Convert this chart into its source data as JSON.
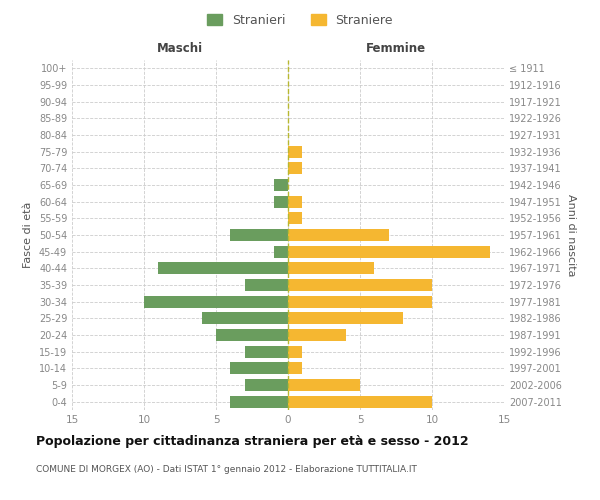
{
  "age_groups": [
    "100+",
    "95-99",
    "90-94",
    "85-89",
    "80-84",
    "75-79",
    "70-74",
    "65-69",
    "60-64",
    "55-59",
    "50-54",
    "45-49",
    "40-44",
    "35-39",
    "30-34",
    "25-29",
    "20-24",
    "15-19",
    "10-14",
    "5-9",
    "0-4"
  ],
  "birth_years": [
    "≤ 1911",
    "1912-1916",
    "1917-1921",
    "1922-1926",
    "1927-1931",
    "1932-1936",
    "1937-1941",
    "1942-1946",
    "1947-1951",
    "1952-1956",
    "1957-1961",
    "1962-1966",
    "1967-1971",
    "1972-1976",
    "1977-1981",
    "1982-1986",
    "1987-1991",
    "1992-1996",
    "1997-2001",
    "2002-2006",
    "2007-2011"
  ],
  "males": [
    0,
    0,
    0,
    0,
    0,
    0,
    0,
    1,
    1,
    0,
    4,
    1,
    9,
    3,
    10,
    6,
    5,
    3,
    4,
    3,
    4
  ],
  "females": [
    0,
    0,
    0,
    0,
    0,
    1,
    1,
    0,
    1,
    1,
    7,
    14,
    6,
    10,
    10,
    8,
    4,
    1,
    1,
    5,
    10
  ],
  "male_color": "#6a9d5e",
  "female_color": "#f5b731",
  "xlabel_left": "Maschi",
  "xlabel_right": "Femmine",
  "ylabel_left": "Fasce di età",
  "ylabel_right": "Anni di nascita",
  "legend_male": "Stranieri",
  "legend_female": "Straniere",
  "title": "Popolazione per cittadinanza straniera per età e sesso - 2012",
  "subtitle": "COMUNE DI MORGEX (AO) - Dati ISTAT 1° gennaio 2012 - Elaborazione TUTTITALIA.IT",
  "xlim": 15,
  "background_color": "#ffffff",
  "grid_color": "#cccccc",
  "axis_label_color": "#555555",
  "tick_label_color": "#888888",
  "vline_color": "#b8b830"
}
